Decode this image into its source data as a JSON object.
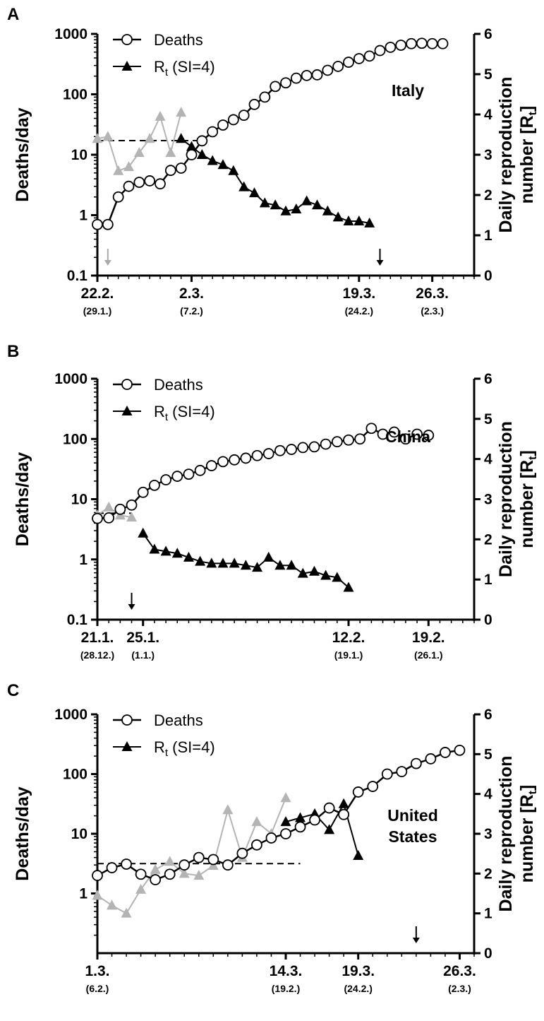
{
  "chart_data": [
    {
      "type": "line",
      "panel": "A",
      "country": "Italy",
      "ylabel_left": "Deaths/day",
      "ylabel_right": "Daily reproduction number [R",
      "ylabel_right_sub": "t",
      "ylabel_right_end": "]",
      "yleft": {
        "scale": "log",
        "ylim": [
          0.1,
          1000
        ],
        "ticks": [
          0.1,
          1,
          10,
          100,
          1000
        ],
        "tick_labels": [
          "0.1",
          "1",
          "10",
          "100",
          "1000"
        ]
      },
      "yright": {
        "ylim": [
          0,
          6
        ],
        "ticks": [
          0,
          1,
          2,
          3,
          4,
          5,
          6
        ],
        "tick_labels": [
          "0",
          "1",
          "2",
          "3",
          "4",
          "5",
          "6"
        ]
      },
      "xlim": [
        0,
        36
      ],
      "xticks": [
        {
          "x": 0,
          "label": "22.2.",
          "sublabel": "(29.1.)"
        },
        {
          "x": 9,
          "label": "2.3.",
          "sublabel": "(7.2.)"
        },
        {
          "x": 25,
          "label": "19.3.",
          "sublabel": "(24.2.)"
        },
        {
          "x": 32,
          "label": "26.3.",
          "sublabel": "(2.3.)"
        }
      ],
      "legend": {
        "deaths": "Deaths",
        "rt_main": "R",
        "rt_sub": "t",
        "rt_rest": " (SI=4)"
      },
      "deaths": {
        "x": [
          0,
          1,
          2,
          3,
          4,
          5,
          6,
          7,
          8,
          9,
          10,
          11,
          12,
          13,
          14,
          15,
          16,
          17,
          18,
          19,
          20,
          21,
          22,
          23,
          24,
          25,
          26,
          27,
          28,
          29,
          30,
          31,
          32,
          33
        ],
        "y": [
          0.7,
          0.7,
          2,
          3,
          3.5,
          3.7,
          3.3,
          5.5,
          6,
          10,
          17,
          24,
          31,
          38,
          45,
          68,
          90,
          135,
          155,
          185,
          205,
          210,
          250,
          290,
          340,
          390,
          430,
          530,
          600,
          650,
          690,
          700,
          690,
          690
        ]
      },
      "rt_gray": {
        "x": [
          0,
          1,
          2,
          3,
          4,
          5,
          6,
          7,
          8
        ],
        "y": [
          3.4,
          3.45,
          2.6,
          2.7,
          3.05,
          3.4,
          3.95,
          3.05,
          4.05
        ]
      },
      "rt_black": {
        "x": [
          8,
          9,
          10,
          11,
          12,
          13,
          14,
          15,
          16,
          17,
          18,
          19,
          20,
          21,
          22,
          23,
          24,
          25,
          26
        ],
        "y": [
          3.4,
          3.2,
          3.0,
          2.85,
          2.75,
          2.6,
          2.2,
          2.05,
          1.8,
          1.75,
          1.6,
          1.65,
          1.85,
          1.75,
          1.6,
          1.45,
          1.35,
          1.35,
          1.3
        ]
      },
      "rt_mean": {
        "x": [
          0,
          10
        ],
        "y": 3.35
      },
      "arrows": [
        {
          "x": 1,
          "color": "#aaaaaa"
        },
        {
          "x": 27,
          "color": "#000000"
        }
      ]
    },
    {
      "type": "line",
      "panel": "B",
      "country": "China",
      "ylabel_left": "Deaths/day",
      "ylabel_right": "Daily reproduction number [R",
      "ylabel_right_sub": "t",
      "ylabel_right_end": "]",
      "yleft": {
        "scale": "log",
        "ylim": [
          0.1,
          1000
        ],
        "ticks": [
          0.1,
          1,
          10,
          100,
          1000
        ],
        "tick_labels": [
          "0.1",
          "1",
          "10",
          "100",
          "1000"
        ]
      },
      "yright": {
        "ylim": [
          0,
          6
        ],
        "ticks": [
          0,
          1,
          2,
          3,
          4,
          5,
          6
        ],
        "tick_labels": [
          "0",
          "1",
          "2",
          "3",
          "4",
          "5",
          "6"
        ]
      },
      "xlim": [
        0,
        33
      ],
      "xticks": [
        {
          "x": 0,
          "label": "21.1.",
          "sublabel": "(28.12.)"
        },
        {
          "x": 4,
          "label": "25.1.",
          "sublabel": "(1.1.)"
        },
        {
          "x": 22,
          "label": "12.2.",
          "sublabel": "(19.1.)"
        },
        {
          "x": 29,
          "label": "19.2.",
          "sublabel": "(26.1.)"
        }
      ],
      "legend": {
        "deaths": "Deaths",
        "rt_main": "R",
        "rt_sub": "t",
        "rt_rest": " (SI=4)"
      },
      "deaths": {
        "x": [
          0,
          1,
          2,
          3,
          4,
          5,
          6,
          7,
          8,
          9,
          10,
          11,
          12,
          13,
          14,
          15,
          16,
          17,
          18,
          19,
          20,
          21,
          22,
          23,
          24,
          25,
          26,
          27,
          28,
          29
        ],
        "y": [
          4.8,
          4.9,
          6.8,
          8,
          13,
          17,
          21,
          24,
          26,
          30,
          36,
          42,
          45,
          48,
          53,
          57,
          64,
          67,
          72,
          74,
          82,
          90,
          96,
          100,
          150,
          120,
          130,
          100,
          120,
          115
        ]
      },
      "rt_gray": {
        "x": [
          0,
          1,
          2,
          3
        ],
        "y": [
          2.6,
          2.8,
          2.6,
          2.55
        ]
      },
      "rt_black": {
        "x": [
          4,
          5,
          6,
          7,
          8,
          9,
          10,
          11,
          12,
          13,
          14,
          15,
          16,
          17,
          18,
          19,
          20,
          21,
          22
        ],
        "y": [
          2.15,
          1.75,
          1.7,
          1.65,
          1.55,
          1.45,
          1.4,
          1.4,
          1.4,
          1.35,
          1.3,
          1.55,
          1.35,
          1.35,
          1.15,
          1.2,
          1.1,
          1.05,
          0.8
        ]
      },
      "rt_mean": {
        "x": [
          0,
          3
        ],
        "y": 2.65
      },
      "arrows": [
        {
          "x": 3,
          "color": "#000000"
        }
      ]
    },
    {
      "type": "line",
      "panel": "C",
      "country_lines": [
        "United",
        "States"
      ],
      "ylabel_left": "Deaths/day",
      "ylabel_right": "Daily reproduction number [R",
      "ylabel_right_sub": "t",
      "ylabel_right_end": "]",
      "yleft": {
        "scale": "log",
        "ylim": [
          0.1,
          1000
        ],
        "ticks": [
          1,
          10,
          100,
          1000
        ],
        "tick_labels": [
          "1",
          "10",
          "100",
          "1000"
        ]
      },
      "yright": {
        "ylim": [
          0,
          6
        ],
        "ticks": [
          0,
          1,
          2,
          3,
          4,
          5,
          6
        ],
        "tick_labels": [
          "0",
          "1",
          "2",
          "3",
          "4",
          "5",
          "6"
        ]
      },
      "xlim": [
        0,
        26
      ],
      "xticks": [
        {
          "x": 0,
          "label": "1.3.",
          "sublabel": "(6.2.)"
        },
        {
          "x": 13,
          "label": "14.3.",
          "sublabel": "(19.2.)"
        },
        {
          "x": 18,
          "label": "19.3.",
          "sublabel": "(24.2.)"
        },
        {
          "x": 25,
          "label": "26.3.",
          "sublabel": "(2.3.)"
        }
      ],
      "legend": {
        "deaths": "Deaths",
        "rt_main": "R",
        "rt_sub": "t",
        "rt_rest": " (SI=4)"
      },
      "deaths": {
        "x": [
          0,
          1,
          2,
          3,
          4,
          5,
          6,
          7,
          8,
          9,
          10,
          11,
          12,
          13,
          14,
          15,
          16,
          17,
          18,
          19,
          20,
          21,
          22,
          23,
          24,
          25
        ],
        "y": [
          2,
          2.7,
          3.1,
          2.1,
          1.7,
          2.1,
          3,
          4,
          3.7,
          3,
          4.7,
          6.5,
          8.5,
          10,
          13,
          17,
          27,
          21,
          50,
          62,
          100,
          110,
          150,
          180,
          230,
          250
        ]
      },
      "rt_gray": {
        "x": [
          0,
          1,
          2,
          3,
          4,
          5,
          6,
          7,
          8,
          9,
          10,
          11,
          12,
          13
        ],
        "y": [
          1.45,
          1.2,
          1.0,
          1.6,
          2.1,
          2.3,
          2.0,
          1.95,
          2.2,
          3.6,
          2.4,
          3.3,
          3.0,
          3.9
        ]
      },
      "rt_black": {
        "x": [
          13,
          14,
          15,
          16,
          17,
          18
        ],
        "y": [
          3.3,
          3.4,
          3.5,
          3.1,
          3.75,
          2.45
        ]
      },
      "rt_mean": {
        "x": [
          0,
          14
        ],
        "y": 2.25
      },
      "arrows": [
        {
          "x": 22,
          "color": "#000000"
        }
      ]
    }
  ]
}
